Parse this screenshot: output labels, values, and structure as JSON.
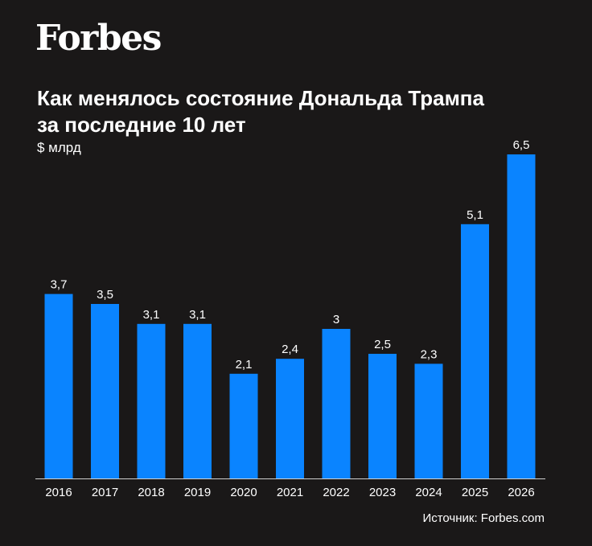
{
  "brand": {
    "logo_text": "Forbes"
  },
  "header": {
    "title_line1": "Как менялось состояние Дональда Трампа",
    "title_line2": "за последние 10 лет",
    "unit": "$ млрд"
  },
  "footer": {
    "source": "Источник: Forbes.com"
  },
  "colors": {
    "background": "#1a1818",
    "bar": "#0a84ff",
    "axis": "#cfcfcf",
    "text": "#ffffff"
  },
  "chart_data": {
    "type": "bar",
    "categories": [
      "2016",
      "2017",
      "2018",
      "2019",
      "2020",
      "2021",
      "2022",
      "2023",
      "2024",
      "2025",
      "2026"
    ],
    "values": [
      3.7,
      3.5,
      3.1,
      3.1,
      2.1,
      2.4,
      3,
      2.5,
      2.3,
      5.1,
      6.5
    ],
    "value_labels": [
      "3,7",
      "3,5",
      "3,1",
      "3,1",
      "2,1",
      "2,4",
      "3",
      "2,5",
      "2,3",
      "5,1",
      "6,5"
    ],
    "ylabel": "$ млрд",
    "ylim": [
      0,
      6.5
    ],
    "grid": false
  }
}
